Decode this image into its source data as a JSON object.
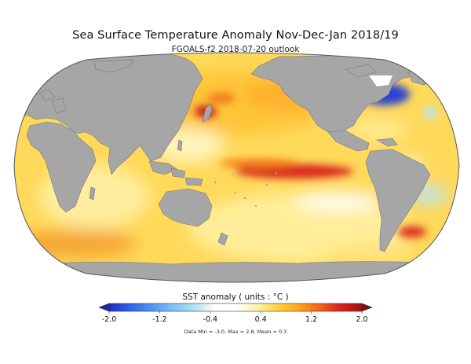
{
  "title": "Sea Surface Temperature Anomaly   Nov-Dec-Jan 2018/19",
  "subtitle": "FGOALS-f2  2018-07-20 outlook",
  "colorbar": {
    "title": "SST anomaly ( units : °C )",
    "ticks": [
      "-2.0",
      "-1.2",
      "-0.4",
      "0.4",
      "1.2",
      "2.0"
    ],
    "stops": [
      "#1c2bc9",
      "#2e64e8",
      "#4f95f2",
      "#7cc0f4",
      "#aee0f5",
      "#ffffff",
      "#ffffff",
      "#fff3a8",
      "#ffd23f",
      "#ffa51c",
      "#f2621a",
      "#d81f1f",
      "#9e1010"
    ]
  },
  "stats": "Data Min = -3.0, Max = 2.8, Mean = 0.3",
  "colors": {
    "ocean_base": "#ffd95a",
    "land": "#a6a6a6",
    "warm_strong": "#d8261d",
    "warm": "#f07c1e",
    "cool": "#2a45d6",
    "cool_light": "#b8e3f5"
  }
}
